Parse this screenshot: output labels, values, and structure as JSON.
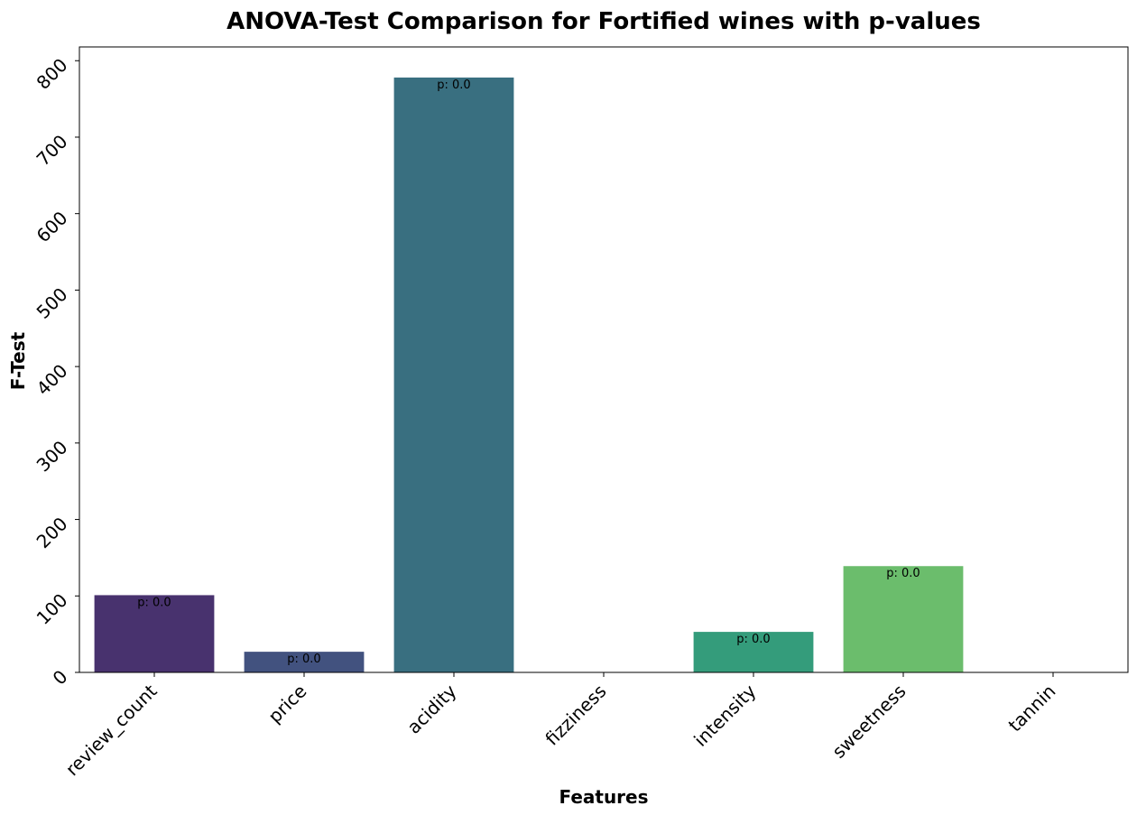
{
  "chart_data": {
    "type": "bar",
    "title": "ANOVA-Test Comparison for Fortified wines with p-values",
    "xlabel": "Features",
    "ylabel": "F-Test",
    "categories": [
      "review_count",
      "price",
      "acidity",
      "fizziness",
      "intensity",
      "sweetness",
      "tannin"
    ],
    "values": [
      101,
      27,
      778,
      null,
      53,
      139,
      null
    ],
    "bar_labels": [
      "p: 0.0",
      "p: 0.0",
      "p: 0.0",
      "",
      "p: 0.0",
      "p: 0.0",
      ""
    ],
    "colors": [
      "#48326e",
      "#42527f",
      "#396f80",
      "#2e8c84",
      "#349c7b",
      "#6bbd6c",
      "#a8d84f"
    ],
    "ylim": [
      0,
      818
    ],
    "yticks": [
      0,
      100,
      200,
      300,
      400,
      500,
      600,
      700,
      800
    ],
    "grid": false,
    "legend": "none"
  }
}
